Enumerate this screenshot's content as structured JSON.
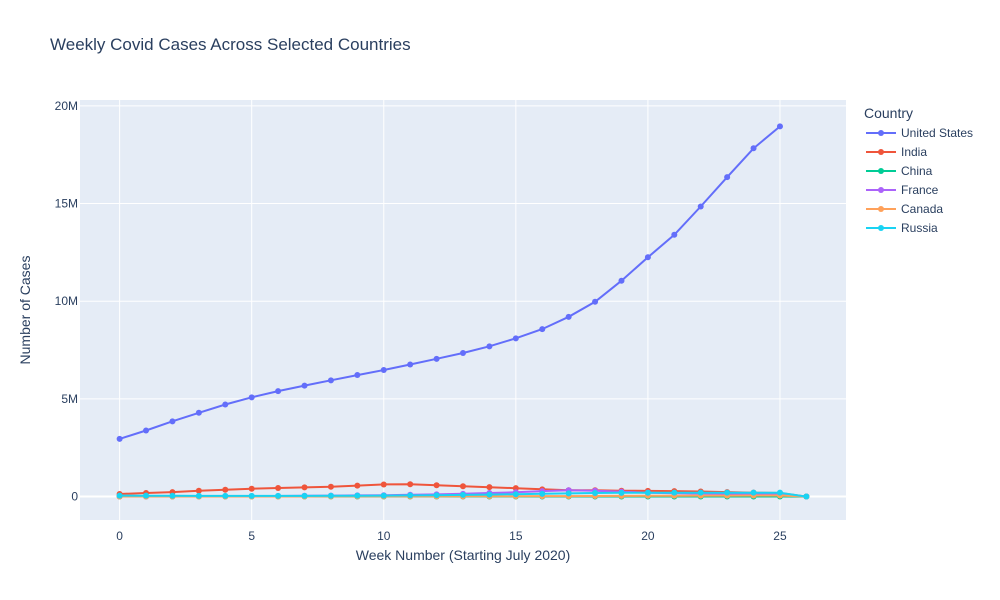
{
  "chart_data": {
    "type": "line",
    "title": "Weekly Covid Cases Across Selected Countries",
    "xlabel": "Week Number (Starting July 2020)",
    "ylabel": "Number of Cases",
    "xlim": [
      -1.5,
      27.5
    ],
    "ylim": [
      -1200000,
      20300000
    ],
    "x_ticks": [
      0,
      5,
      10,
      15,
      20,
      25
    ],
    "y_ticks": [
      0,
      5000000,
      10000000,
      15000000,
      20000000
    ],
    "y_tick_labels": [
      "0",
      "5M",
      "10M",
      "15M",
      "20M"
    ],
    "grid": true,
    "legend_title": "Country",
    "legend_position": "right",
    "series": [
      {
        "name": "United States",
        "color": "#636efa",
        "x": [
          0,
          1,
          2,
          3,
          4,
          5,
          6,
          7,
          8,
          9,
          10,
          11,
          12,
          13,
          14,
          15,
          16,
          17,
          18,
          19,
          20,
          21,
          22,
          23,
          24,
          25
        ],
        "values": [
          2950000,
          3380000,
          3850000,
          4290000,
          4710000,
          5080000,
          5400000,
          5680000,
          5950000,
          6220000,
          6480000,
          6760000,
          7050000,
          7350000,
          7690000,
          8100000,
          8570000,
          9200000,
          9970000,
          11050000,
          12250000,
          13400000,
          14850000,
          16350000,
          17830000,
          18950000
        ]
      },
      {
        "name": "India",
        "color": "#ef553b",
        "x": [
          0,
          1,
          2,
          3,
          4,
          5,
          6,
          7,
          8,
          9,
          10,
          11,
          12,
          13,
          14,
          15,
          16,
          17,
          18,
          19,
          20,
          21,
          22,
          23,
          24,
          25,
          26
        ],
        "values": [
          130000,
          180000,
          230000,
          300000,
          350000,
          400000,
          440000,
          470000,
          500000,
          560000,
          620000,
          630000,
          580000,
          530000,
          480000,
          430000,
          370000,
          320000,
          320000,
          300000,
          290000,
          280000,
          260000,
          230000,
          200000,
          180000,
          0
        ]
      },
      {
        "name": "China",
        "color": "#00cc96",
        "x": [
          0,
          1,
          2,
          3,
          4,
          5,
          6,
          7,
          8,
          9,
          10,
          11,
          12,
          13,
          14,
          15,
          16,
          17,
          18,
          19,
          20,
          21,
          22,
          23,
          24,
          25,
          26
        ],
        "values": [
          2000,
          2000,
          2000,
          2000,
          2000,
          2000,
          2000,
          2000,
          2000,
          2000,
          2000,
          2000,
          2000,
          2000,
          2000,
          2000,
          2000,
          2000,
          2000,
          2000,
          2000,
          2000,
          2000,
          2000,
          2000,
          2000,
          0
        ]
      },
      {
        "name": "France",
        "color": "#ab63fa",
        "x": [
          0,
          1,
          2,
          3,
          4,
          5,
          6,
          7,
          8,
          9,
          10,
          11,
          12,
          13,
          14,
          15,
          16,
          17,
          18,
          19,
          20,
          21,
          22,
          23,
          24,
          25,
          26
        ],
        "values": [
          5000,
          5000,
          8000,
          10000,
          15000,
          20000,
          30000,
          40000,
          50000,
          60000,
          70000,
          90000,
          110000,
          140000,
          180000,
          220000,
          280000,
          320000,
          300000,
          250000,
          200000,
          170000,
          150000,
          130000,
          110000,
          100000,
          0
        ]
      },
      {
        "name": "Canada",
        "color": "#ffa15a",
        "x": [
          0,
          1,
          2,
          3,
          4,
          5,
          6,
          7,
          8,
          9,
          10,
          11,
          12,
          13,
          14,
          15,
          16,
          17,
          18,
          19,
          20,
          21,
          22,
          23,
          24,
          25,
          26
        ],
        "values": [
          3000,
          3000,
          2500,
          2500,
          3000,
          3000,
          4000,
          5000,
          6000,
          7000,
          8000,
          9000,
          10000,
          12000,
          15000,
          18000,
          22000,
          25000,
          30000,
          35000,
          40000,
          45000,
          48000,
          50000,
          52000,
          55000,
          0
        ]
      },
      {
        "name": "Russia",
        "color": "#19d3f3",
        "x": [
          0,
          1,
          2,
          3,
          4,
          5,
          6,
          7,
          8,
          9,
          10,
          11,
          12,
          13,
          14,
          15,
          16,
          17,
          18,
          19,
          20,
          21,
          22,
          23,
          24,
          25,
          26
        ],
        "values": [
          50000,
          45000,
          40000,
          35000,
          35000,
          35000,
          35000,
          35000,
          40000,
          45000,
          50000,
          60000,
          70000,
          85000,
          100000,
          120000,
          140000,
          160000,
          180000,
          190000,
          195000,
          200000,
          200000,
          200000,
          200000,
          200000,
          0
        ]
      }
    ]
  }
}
